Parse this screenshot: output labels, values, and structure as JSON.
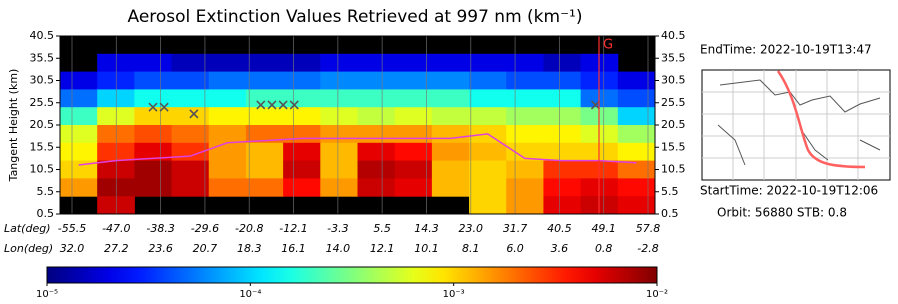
{
  "chart_data": {
    "type": "heatmap",
    "title": "Aerosol Extinction Values Retrieved at 997 nm (km⁻¹)",
    "y_label": "Tangent Height (km)",
    "ylim": [
      0.5,
      40.5
    ],
    "yticks": [
      0.5,
      5.5,
      10.5,
      15.5,
      20.5,
      25.5,
      30.5,
      35.5,
      40.5
    ],
    "lat_label": "Lat(deg)",
    "lat": [
      "-55.5",
      "-47.0",
      "-38.3",
      "-29.6",
      "-20.8",
      "-12.1",
      "-3.3",
      "5.5",
      "14.3",
      "23.0",
      "31.7",
      "40.5",
      "49.1",
      "57.8"
    ],
    "lon_label": "Lon(deg)",
    "lon": [
      "32.0",
      "27.2",
      "23.6",
      "20.7",
      "18.3",
      "16.1",
      "14.0",
      "12.1",
      "10.1",
      "8.1",
      "6.0",
      "3.6",
      "0.8",
      "-2.8"
    ],
    "log_color_scale": true,
    "colormap": "jet",
    "clim": [
      1e-05,
      0.01
    ],
    "cticks": [
      {
        "value": 1e-05,
        "label": "10⁻⁵"
      },
      {
        "value": 0.0001,
        "label": "10⁻⁴"
      },
      {
        "value": 0.001,
        "label": "10⁻³"
      },
      {
        "value": 0.01,
        "label": "10⁻²"
      }
    ],
    "values": [
      [
        null,
        null,
        null,
        null,
        null,
        null,
        null,
        null,
        null,
        null,
        null,
        null,
        null,
        null,
        null,
        null
      ],
      [
        null,
        2e-05,
        2e-05,
        1.5e-05,
        1.5e-05,
        1.5e-05,
        1.5e-05,
        2e-05,
        2e-05,
        2e-05,
        2e-05,
        2e-05,
        2e-05,
        1.5e-05,
        2e-05,
        null
      ],
      [
        2e-05,
        3e-05,
        4e-05,
        4e-05,
        5e-05,
        5e-05,
        5e-05,
        6e-05,
        6e-05,
        6e-05,
        6e-05,
        5e-05,
        4e-05,
        4e-05,
        3e-05,
        2e-05
      ],
      [
        5e-05,
        0.0001,
        0.00015,
        0.00015,
        0.00015,
        0.0002,
        0.0002,
        0.0002,
        0.0002,
        0.0002,
        0.0002,
        0.00015,
        0.00015,
        0.00015,
        5e-05,
        4e-05
      ],
      [
        0.0002,
        0.0006,
        0.001,
        0.001,
        0.0008,
        0.0008,
        0.0008,
        0.0006,
        0.0005,
        0.0006,
        0.0005,
        0.0005,
        0.0004,
        0.0004,
        0.0003,
        0.0001
      ],
      [
        0.0006,
        0.002,
        0.0025,
        0.002,
        0.0015,
        0.002,
        0.002,
        0.0015,
        0.0015,
        0.0015,
        0.0012,
        0.001,
        0.0008,
        0.0008,
        0.0006,
        0.0004
      ],
      [
        0.0008,
        0.003,
        0.005,
        0.003,
        0.0015,
        0.0012,
        0.005,
        0.0012,
        0.005,
        0.004,
        0.0015,
        0.0012,
        0.001,
        0.001,
        0.001,
        0.0008
      ],
      [
        0.001,
        0.006,
        0.008,
        0.006,
        0.0015,
        0.0012,
        0.006,
        0.0012,
        0.007,
        0.006,
        0.0012,
        0.001,
        0.0012,
        0.003,
        0.003,
        0.002
      ],
      [
        0.0015,
        0.008,
        0.008,
        0.006,
        0.002,
        0.002,
        0.004,
        0.0015,
        0.006,
        0.005,
        0.0012,
        0.001,
        0.0015,
        0.004,
        0.005,
        0.004
      ],
      [
        null,
        0.006,
        null,
        null,
        null,
        null,
        null,
        null,
        null,
        null,
        null,
        0.001,
        0.0015,
        0.005,
        0.006,
        0.005
      ]
    ],
    "tropopause": {
      "color": "#e040e0",
      "values": [
        11.5,
        12.5,
        13,
        13.5,
        16.5,
        17,
        17.5,
        17.5,
        17.5,
        17.5,
        17.5,
        18.5,
        13,
        12.5,
        12.5,
        12
      ]
    },
    "x_markers": {
      "color": "#555555",
      "x": [
        2.5,
        2.8,
        3.6,
        5.4,
        5.7,
        6.0,
        6.3,
        14.4
      ],
      "y": [
        24.5,
        24.5,
        23,
        25,
        25,
        25,
        25,
        25
      ]
    },
    "marker_label": "G",
    "end_time": "EndTime:  2022-10-19T13:47",
    "start_time": "StartTime: 2022-10-19T12:06",
    "orbit": "Orbit: 56880  STB: 0.8"
  }
}
